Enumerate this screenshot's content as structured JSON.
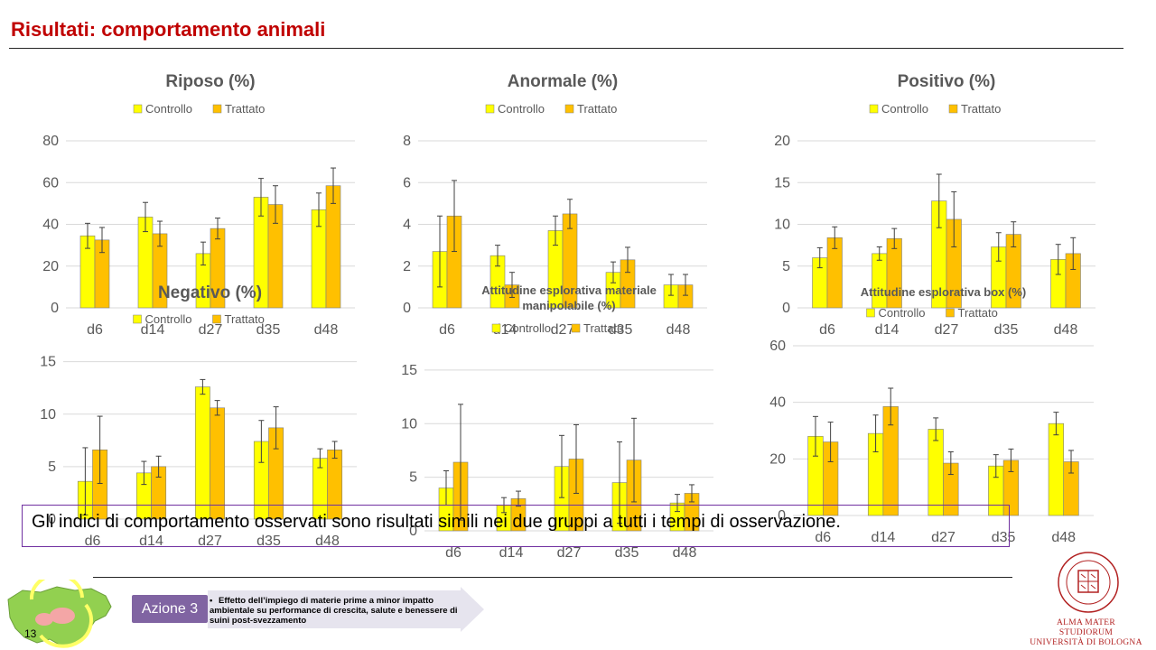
{
  "slide": {
    "title": "Risultati: comportamento animali",
    "summary": "Gli indici di comportamento osservati  sono risultati simili nei due gruppi a tutti i tempi di osservazione.",
    "page_number": "13"
  },
  "footer": {
    "azione_label": "Azione 3",
    "azione_text": "Effetto dell’impiego di materie prime a minor impatto ambientale su performance di crescita, salute e benessere di suini post-svezzamento",
    "university_lines": [
      "ALMA MATER STUDIORUM",
      "UNIVERSITÀ DI BOLOGNA"
    ],
    "seal_text": "ALMA MATER STUDIORUM · A.D. 1088"
  },
  "colors": {
    "title_red": "#c00000",
    "controllo": "#ffff00",
    "trattato": "#ffc000",
    "azione_purple": "#8064a2",
    "summary_border": "#7030a0",
    "gridline": "#d9d9d9",
    "text_gray": "#595959"
  },
  "chart_data": [
    {
      "type": "bar",
      "title": "Riposo (%)",
      "categories": [
        "d6",
        "d14",
        "d27",
        "d35",
        "d48"
      ],
      "series": [
        {
          "name": "Controllo",
          "values": [
            34.5,
            43.5,
            26,
            53,
            47
          ],
          "errors": [
            6,
            7,
            5.5,
            9,
            8
          ]
        },
        {
          "name": "Trattato",
          "values": [
            32.5,
            35.5,
            38,
            49.5,
            58.5
          ],
          "errors": [
            6,
            6,
            5,
            9,
            8.5
          ]
        }
      ],
      "yticks": [
        0,
        20,
        40,
        60,
        80
      ],
      "ylim": [
        0,
        80
      ],
      "legend": "top",
      "grid": true
    },
    {
      "type": "bar",
      "title": "Anormale (%)",
      "categories": [
        "d6",
        "d14",
        "d27",
        "d35",
        "d48"
      ],
      "series": [
        {
          "name": "Controllo",
          "values": [
            2.7,
            2.5,
            3.7,
            1.7,
            1.1
          ],
          "errors": [
            1.7,
            0.5,
            0.7,
            0.5,
            0.5
          ]
        },
        {
          "name": "Trattato",
          "values": [
            4.4,
            1.1,
            4.5,
            2.3,
            1.1
          ],
          "errors": [
            1.7,
            0.6,
            0.7,
            0.6,
            0.5
          ]
        }
      ],
      "yticks": [
        0,
        2,
        4,
        6,
        8
      ],
      "ylim": [
        0,
        8
      ],
      "legend": "top",
      "grid": true
    },
    {
      "type": "bar",
      "title": "Positivo (%)",
      "categories": [
        "d6",
        "d14",
        "d27",
        "d35",
        "d48"
      ],
      "series": [
        {
          "name": "Controllo",
          "values": [
            6,
            6.5,
            12.8,
            7.3,
            5.8
          ],
          "errors": [
            1.2,
            0.8,
            3.2,
            1.7,
            1.8
          ]
        },
        {
          "name": "Trattato",
          "values": [
            8.4,
            8.3,
            10.6,
            8.8,
            6.5
          ],
          "errors": [
            1.3,
            1.2,
            3.3,
            1.5,
            1.9
          ]
        }
      ],
      "yticks": [
        0,
        5,
        10,
        15,
        20
      ],
      "ylim": [
        0,
        20
      ],
      "legend": "top",
      "grid": true
    },
    {
      "type": "bar",
      "title": "Negativo (%)",
      "categories": [
        "d6",
        "d14",
        "d27",
        "d35",
        "d48"
      ],
      "series": [
        {
          "name": "Controllo",
          "values": [
            3.6,
            4.4,
            12.6,
            7.4,
            5.8
          ],
          "errors": [
            3.2,
            1.1,
            0.7,
            2,
            0.9
          ]
        },
        {
          "name": "Trattato",
          "values": [
            6.6,
            5,
            10.6,
            8.7,
            6.6
          ],
          "errors": [
            3.2,
            1,
            0.7,
            2,
            0.8
          ]
        }
      ],
      "yticks": [
        0,
        5,
        10,
        15
      ],
      "ylim": [
        0,
        16
      ],
      "legend": "top",
      "grid": true
    },
    {
      "type": "bar",
      "title": "Attitudine esplorativa materiale manipolabile (%)",
      "categories": [
        "d6",
        "d14",
        "d27",
        "d35",
        "d48"
      ],
      "series": [
        {
          "name": "Controllo",
          "values": [
            4,
            2.4,
            6,
            4.5,
            2.6
          ],
          "errors": [
            1.6,
            0.7,
            2.9,
            3.8,
            0.8
          ]
        },
        {
          "name": "Trattato",
          "values": [
            6.4,
            3,
            6.7,
            6.6,
            3.5
          ],
          "errors": [
            5.4,
            0.7,
            3.2,
            3.9,
            0.8
          ]
        }
      ],
      "yticks": [
        0,
        5,
        10,
        15
      ],
      "ylim": [
        0,
        16
      ],
      "legend": "top",
      "grid": true
    },
    {
      "type": "bar",
      "title": "Attitudine esplorativa box (%)",
      "categories": [
        "d6",
        "d14",
        "d27",
        "d35",
        "d48"
      ],
      "series": [
        {
          "name": "Controllo",
          "values": [
            28,
            29,
            30.5,
            17.5,
            32.5
          ],
          "errors": [
            7,
            6.5,
            4,
            4,
            4
          ]
        },
        {
          "name": "Trattato",
          "values": [
            26,
            38.5,
            18.5,
            19.5,
            19
          ],
          "errors": [
            7,
            6.5,
            4,
            4,
            4
          ]
        }
      ],
      "yticks": [
        0,
        20,
        40,
        60
      ],
      "ylim": [
        0,
        60
      ],
      "legend": "top",
      "grid": true
    }
  ]
}
